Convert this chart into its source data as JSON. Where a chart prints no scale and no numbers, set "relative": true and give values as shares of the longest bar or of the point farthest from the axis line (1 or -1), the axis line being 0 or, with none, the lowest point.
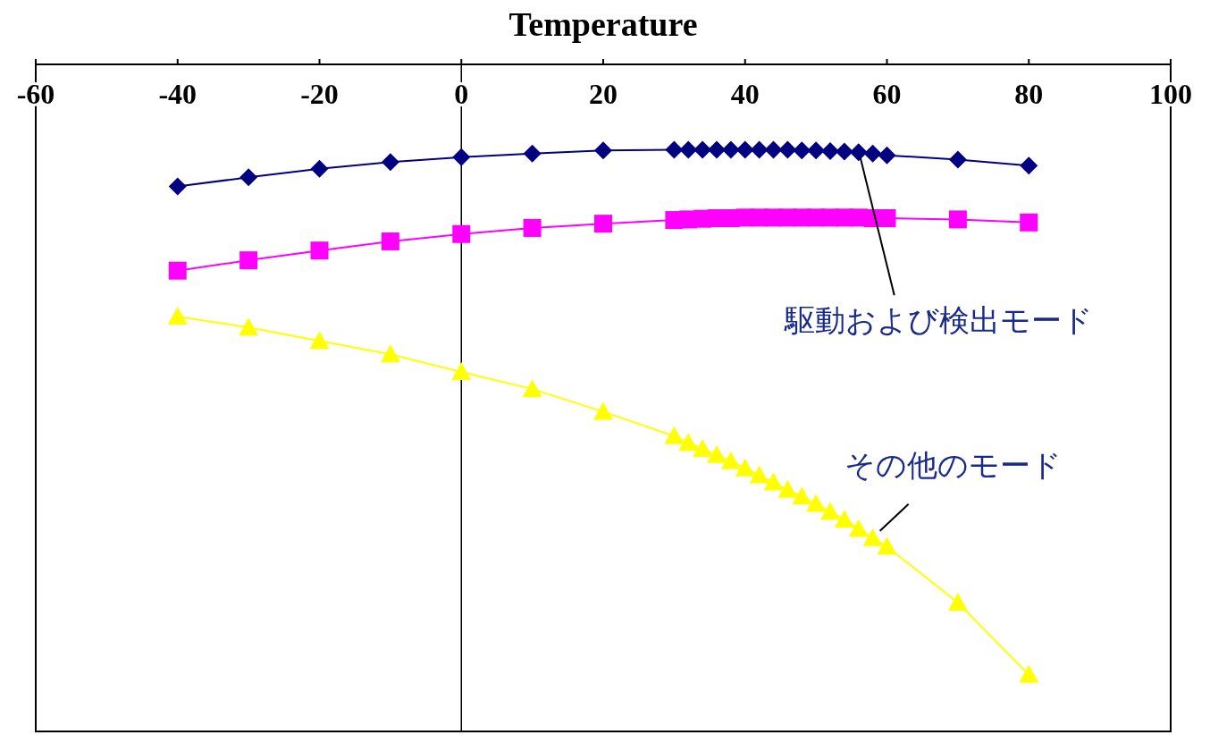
{
  "chart_data": {
    "type": "line",
    "xlabel": "Temperature",
    "relative": true,
    "tick_labels": "x",
    "xlim": [
      -60,
      100
    ],
    "xticks": [
      -60,
      -40,
      -20,
      0,
      20,
      40,
      60,
      80,
      100
    ],
    "x": [
      -40,
      -30,
      -20,
      -10,
      0,
      10,
      20,
      30,
      32,
      34,
      36,
      38,
      40,
      42,
      44,
      46,
      48,
      50,
      52,
      54,
      56,
      58,
      60,
      70,
      80
    ],
    "series": [
      {
        "color": "#000080",
        "marker": "diamond",
        "values": [
          -0.2,
          -0.185,
          -0.171,
          -0.16,
          -0.152,
          -0.146,
          -0.141,
          -0.14,
          -0.14,
          -0.14,
          -0.14,
          -0.14,
          -0.14,
          -0.14,
          -0.14,
          -0.14,
          -0.141,
          -0.141,
          -0.142,
          -0.143,
          -0.144,
          -0.146,
          -0.149,
          -0.156,
          -0.166
        ]
      },
      {
        "color": "#ff00ff",
        "marker": "square",
        "values": [
          -0.338,
          -0.321,
          -0.305,
          -0.29,
          -0.278,
          -0.268,
          -0.261,
          -0.255,
          -0.254,
          -0.253,
          -0.252,
          -0.252,
          -0.251,
          -0.251,
          -0.251,
          -0.251,
          -0.251,
          -0.251,
          -0.251,
          -0.251,
          -0.251,
          -0.252,
          -0.252,
          -0.254,
          -0.259
        ]
      },
      {
        "color": "#ffff00",
        "marker": "triangle",
        "values": [
          -0.413,
          -0.431,
          -0.453,
          -0.475,
          -0.504,
          -0.532,
          -0.569,
          -0.609,
          -0.62,
          -0.63,
          -0.64,
          -0.65,
          -0.662,
          -0.673,
          -0.685,
          -0.697,
          -0.708,
          -0.72,
          -0.733,
          -0.746,
          -0.761,
          -0.776,
          -0.79,
          -0.882,
          -1
        ]
      }
    ],
    "ref_lines": [
      {
        "axis": "x",
        "value": 0
      }
    ],
    "annotations": [
      {
        "text": "駆動および検出モード",
        "x": 56,
        "y": -0.144
      },
      {
        "text": "その他のモード",
        "x": 58,
        "y": -0.776
      }
    ]
  }
}
